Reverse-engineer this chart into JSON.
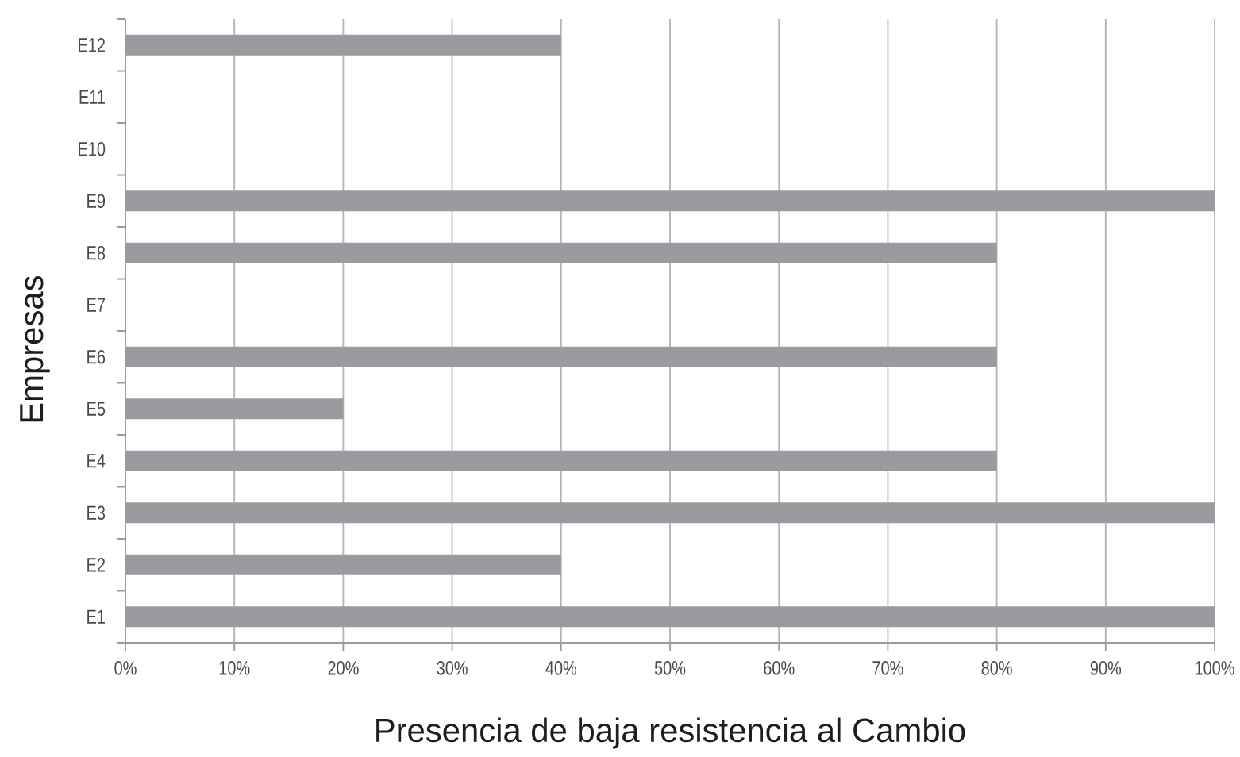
{
  "chart_data": {
    "type": "bar",
    "orientation": "horizontal",
    "categories": [
      "E12",
      "E11",
      "E10",
      "E9",
      "E8",
      "E7",
      "E6",
      "E5",
      "E4",
      "E3",
      "E2",
      "E1"
    ],
    "values": [
      40,
      0,
      0,
      100,
      80,
      0,
      80,
      20,
      80,
      100,
      40,
      100
    ],
    "color": "#9b9b9f",
    "xlabel": "Presencia de baja resistencia al Cambio",
    "ylabel": "Empresas",
    "xlim": [
      0,
      100
    ],
    "xticks": [
      {
        "value": 0,
        "label": "0%"
      },
      {
        "value": 10,
        "label": "10%"
      },
      {
        "value": 20,
        "label": "20%"
      },
      {
        "value": 30,
        "label": "30%"
      },
      {
        "value": 40,
        "label": "40%"
      },
      {
        "value": 50,
        "label": "50%"
      },
      {
        "value": 60,
        "label": "60%"
      },
      {
        "value": 70,
        "label": "70%"
      },
      {
        "value": 80,
        "label": "80%"
      },
      {
        "value": 90,
        "label": "90%"
      },
      {
        "value": 100,
        "label": "100%"
      }
    ],
    "grid": "x"
  }
}
